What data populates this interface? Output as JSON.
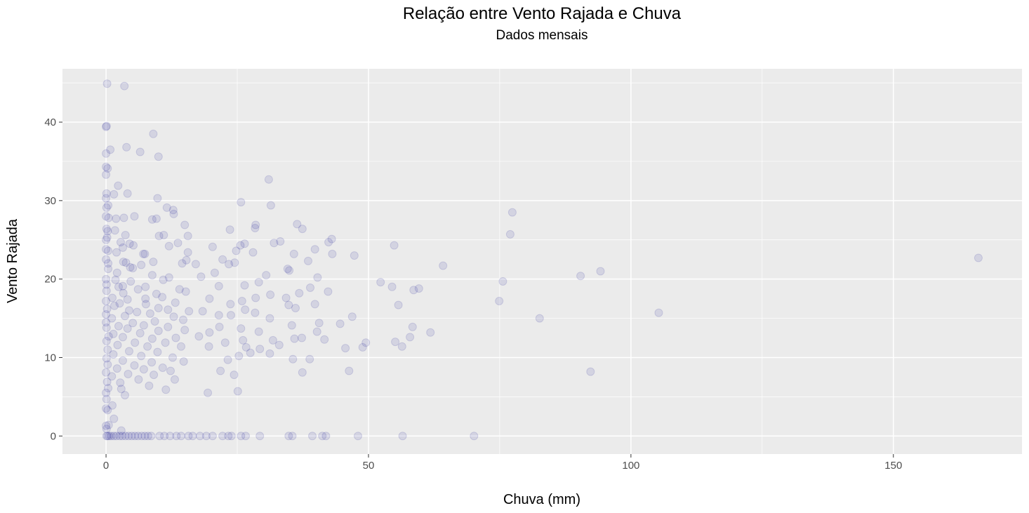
{
  "chart_data": {
    "type": "scatter",
    "title": "Relação entre Vento Rajada e Chuva",
    "subtitle": "Dados mensais",
    "xlabel": "Chuva (mm)",
    "ylabel": "Vento Rajada",
    "xlim": [
      -8.3,
      174.5
    ],
    "ylim": [
      -2.3,
      46.8
    ],
    "x_ticks": [
      0,
      50,
      100,
      150
    ],
    "x_tick_labels": [
      "0",
      "50",
      "100",
      "150"
    ],
    "y_ticks": [
      0,
      10,
      20,
      30,
      40
    ],
    "y_tick_labels": [
      "0",
      "10",
      "20",
      "30",
      "40"
    ],
    "grid": true,
    "point_color": "#00008B",
    "point_alpha": 0.1,
    "panel_background": "#EBEBEB",
    "legend": "none",
    "points": [
      [
        0.2,
        44.9
      ],
      [
        3.5,
        44.6
      ],
      [
        0,
        39.4
      ],
      [
        0.1,
        39.5
      ],
      [
        9,
        38.5
      ],
      [
        3.9,
        36.8
      ],
      [
        0.8,
        36.5
      ],
      [
        6.5,
        36.2
      ],
      [
        0,
        36
      ],
      [
        10,
        35.6
      ],
      [
        0,
        34.3
      ],
      [
        0.3,
        34.1
      ],
      [
        0,
        33.3
      ],
      [
        0.1,
        30.9
      ],
      [
        2.3,
        31.9
      ],
      [
        4.1,
        30.9
      ],
      [
        1.5,
        30.8
      ],
      [
        9.8,
        30.3
      ],
      [
        0,
        30.3
      ],
      [
        0.1,
        29.1
      ],
      [
        0.4,
        29.4
      ],
      [
        11.6,
        29.1
      ],
      [
        12.8,
        28.8
      ],
      [
        12.9,
        28.3
      ],
      [
        5.4,
        28
      ],
      [
        0,
        28
      ],
      [
        3.4,
        27.8
      ],
      [
        0.5,
        27.8
      ],
      [
        9.6,
        27.7
      ],
      [
        8.8,
        27.6
      ],
      [
        1.9,
        27.7
      ],
      [
        15,
        26.9
      ],
      [
        0.1,
        26.4
      ],
      [
        0.3,
        26.1
      ],
      [
        1.7,
        26.2
      ],
      [
        10.1,
        25.5
      ],
      [
        11,
        25.6
      ],
      [
        3.7,
        25.6
      ],
      [
        15.6,
        25.5
      ],
      [
        0.2,
        25.3
      ],
      [
        0,
        25
      ],
      [
        2.8,
        24.7
      ],
      [
        13.7,
        24.6
      ],
      [
        4.5,
        24.5
      ],
      [
        5.2,
        24.3
      ],
      [
        12,
        24.2
      ],
      [
        3.2,
        24
      ],
      [
        0,
        23.8
      ],
      [
        0.4,
        23.6
      ],
      [
        7.4,
        23.2
      ],
      [
        7.1,
        23.2
      ],
      [
        15.6,
        23.4
      ],
      [
        2,
        23.4
      ],
      [
        0,
        22.5
      ],
      [
        3.3,
        22.2
      ],
      [
        9,
        22.2
      ],
      [
        15.3,
        22.4
      ],
      [
        0.4,
        22
      ],
      [
        3.8,
        22.1
      ],
      [
        6.7,
        21.8
      ],
      [
        4.6,
        21.5
      ],
      [
        14.5,
        22
      ],
      [
        5.1,
        21.4
      ],
      [
        0.4,
        21.3
      ],
      [
        2.1,
        20.8
      ],
      [
        8.8,
        20.5
      ],
      [
        0,
        20
      ],
      [
        1.8,
        19.9
      ],
      [
        4.7,
        19.7
      ],
      [
        10.9,
        19.9
      ],
      [
        12,
        20.2
      ],
      [
        0.1,
        19.3
      ],
      [
        2.4,
        19
      ],
      [
        7.5,
        19
      ],
      [
        3.2,
        19.1
      ],
      [
        6.1,
        18.7
      ],
      [
        14,
        18.7
      ],
      [
        15.2,
        18.4
      ],
      [
        0.1,
        18.5
      ],
      [
        3.3,
        18.2
      ],
      [
        9.6,
        18.1
      ],
      [
        1.2,
        17.6
      ],
      [
        7.5,
        17.5
      ],
      [
        10.7,
        17.7
      ],
      [
        4.1,
        17.4
      ],
      [
        0,
        17.2
      ],
      [
        13.2,
        17
      ],
      [
        2.6,
        16.9
      ],
      [
        7.6,
        16.8
      ],
      [
        10,
        16.3
      ],
      [
        0.2,
        16.2
      ],
      [
        1.6,
        16.6
      ],
      [
        11.8,
        16.1
      ],
      [
        4.4,
        16
      ],
      [
        5.9,
        15.8
      ],
      [
        15.8,
        15.9
      ],
      [
        0,
        15.5
      ],
      [
        8.4,
        15.6
      ],
      [
        3.6,
        15.3
      ],
      [
        12.9,
        15.2
      ],
      [
        1.1,
        15
      ],
      [
        9.3,
        14.6
      ],
      [
        14.7,
        14.8
      ],
      [
        0,
        14.5
      ],
      [
        5.1,
        14.4
      ],
      [
        2.4,
        14
      ],
      [
        7.2,
        14.1
      ],
      [
        11.8,
        13.9
      ],
      [
        0.1,
        13.8
      ],
      [
        4.1,
        13.7
      ],
      [
        15,
        13.5
      ],
      [
        10,
        13.4
      ],
      [
        1.4,
        13
      ],
      [
        6.5,
        13.1
      ],
      [
        0.5,
        12.7
      ],
      [
        3.2,
        12.6
      ],
      [
        8.8,
        12.4
      ],
      [
        13.3,
        12.5
      ],
      [
        0.1,
        12.1
      ],
      [
        5.5,
        11.9
      ],
      [
        11.3,
        11.9
      ],
      [
        2.2,
        11.6
      ],
      [
        7.9,
        11.4
      ],
      [
        14.3,
        11.4
      ],
      [
        0.3,
        11
      ],
      [
        4.4,
        10.8
      ],
      [
        9.8,
        10.7
      ],
      [
        1.4,
        10.4
      ],
      [
        6.7,
        10.2
      ],
      [
        12.7,
        10
      ],
      [
        0.1,
        9.9
      ],
      [
        3.2,
        9.6
      ],
      [
        8.7,
        9.4
      ],
      [
        14.8,
        9.5
      ],
      [
        0.3,
        9.1
      ],
      [
        5.4,
        9
      ],
      [
        10.8,
        8.7
      ],
      [
        2.1,
        8.6
      ],
      [
        7.2,
        8.5
      ],
      [
        12.3,
        8.3
      ],
      [
        0,
        8.1
      ],
      [
        4.2,
        7.9
      ],
      [
        9.1,
        7.8
      ],
      [
        13.1,
        7.2
      ],
      [
        1.1,
        7.6
      ],
      [
        6.2,
        7.2
      ],
      [
        0.2,
        6.9
      ],
      [
        2.7,
        6.8
      ],
      [
        8.2,
        6.4
      ],
      [
        11.4,
        5.9
      ],
      [
        0.4,
        6.1
      ],
      [
        2.9,
        6
      ],
      [
        0,
        5.5
      ],
      [
        3.6,
        5.2
      ],
      [
        0.1,
        4.7
      ],
      [
        1.2,
        3.9
      ],
      [
        0,
        3.5
      ],
      [
        0.3,
        3.3
      ],
      [
        1.5,
        2.2
      ],
      [
        0,
        1.3
      ],
      [
        0.5,
        1.4
      ],
      [
        0.1,
        0.9
      ],
      [
        2.9,
        0.7
      ],
      [
        25.7,
        29.8
      ],
      [
        31,
        32.7
      ],
      [
        31.4,
        29.4
      ],
      [
        23.6,
        26.3
      ],
      [
        28.5,
        26.9
      ],
      [
        28.4,
        26.5
      ],
      [
        36.4,
        27
      ],
      [
        37.4,
        26.4
      ],
      [
        33.2,
        24.8
      ],
      [
        32,
        24.6
      ],
      [
        43,
        25.1
      ],
      [
        42.4,
        24.7
      ],
      [
        26.4,
        24.5
      ],
      [
        25.6,
        24.3
      ],
      [
        20.3,
        24.1
      ],
      [
        39.8,
        23.8
      ],
      [
        43.1,
        23.2
      ],
      [
        35.8,
        23.2
      ],
      [
        47.3,
        23
      ],
      [
        24.8,
        23.6
      ],
      [
        28,
        23.4
      ],
      [
        22.2,
        22.5
      ],
      [
        38.5,
        22.3
      ],
      [
        24.5,
        22.1
      ],
      [
        17.1,
        21.9
      ],
      [
        23.4,
        21.9
      ],
      [
        34.6,
        21.3
      ],
      [
        34.9,
        21.1
      ],
      [
        20.7,
        20.8
      ],
      [
        30.5,
        20.5
      ],
      [
        40.3,
        20.2
      ],
      [
        18.1,
        20.3
      ],
      [
        29.1,
        19.6
      ],
      [
        26.4,
        19.2
      ],
      [
        21.5,
        19.1
      ],
      [
        38.9,
        18.9
      ],
      [
        42.3,
        18.4
      ],
      [
        36.8,
        18.2
      ],
      [
        31.3,
        18
      ],
      [
        34.3,
        17.6
      ],
      [
        28.5,
        17.6
      ],
      [
        25.9,
        17.2
      ],
      [
        39.8,
        16.8
      ],
      [
        19.7,
        17.5
      ],
      [
        23.7,
        16.8
      ],
      [
        34.8,
        16.7
      ],
      [
        36.1,
        16.3
      ],
      [
        26.5,
        16.1
      ],
      [
        18.4,
        15.9
      ],
      [
        28.4,
        15.7
      ],
      [
        23.8,
        15.4
      ],
      [
        21.5,
        15.4
      ],
      [
        31.2,
        15
      ],
      [
        40.6,
        14.4
      ],
      [
        46.9,
        15.2
      ],
      [
        44.6,
        14.3
      ],
      [
        35.4,
        14.1
      ],
      [
        29.1,
        13.3
      ],
      [
        21.6,
        13.9
      ],
      [
        40.2,
        13.3
      ],
      [
        25.7,
        13.7
      ],
      [
        19.7,
        13.2
      ],
      [
        17.7,
        12.7
      ],
      [
        41.6,
        12.3
      ],
      [
        37.3,
        12.5
      ],
      [
        35.9,
        12.4
      ],
      [
        26.1,
        12.2
      ],
      [
        22.7,
        11.9
      ],
      [
        19.6,
        11.4
      ],
      [
        29.3,
        11.1
      ],
      [
        33,
        11.6
      ],
      [
        26.7,
        11.3
      ],
      [
        31.8,
        12.2
      ],
      [
        45.6,
        11.2
      ],
      [
        49.5,
        11.9
      ],
      [
        48.9,
        11.3
      ],
      [
        27.5,
        10.6
      ],
      [
        31.2,
        10.5
      ],
      [
        25.3,
        10.2
      ],
      [
        23.2,
        9.7
      ],
      [
        35.6,
        9.8
      ],
      [
        38.8,
        9.8
      ],
      [
        46.3,
        8.3
      ],
      [
        21.8,
        8.3
      ],
      [
        37.4,
        8.1
      ],
      [
        24.4,
        7.8
      ],
      [
        19.4,
        5.5
      ],
      [
        25.1,
        5.7
      ],
      [
        52.3,
        19.6
      ],
      [
        54.5,
        19
      ],
      [
        55.7,
        16.7
      ],
      [
        59.6,
        18.8
      ],
      [
        58.6,
        18.6
      ],
      [
        54.9,
        24.3
      ],
      [
        64.2,
        21.7
      ],
      [
        56.4,
        11.4
      ],
      [
        55.1,
        12
      ],
      [
        57.9,
        12.6
      ],
      [
        58.4,
        13.9
      ],
      [
        61.8,
        13.2
      ],
      [
        77,
        25.7
      ],
      [
        77.4,
        28.5
      ],
      [
        75.6,
        19.7
      ],
      [
        74.9,
        17.2
      ],
      [
        82.6,
        15
      ],
      [
        90.4,
        20.4
      ],
      [
        94.2,
        21
      ],
      [
        105.3,
        15.7
      ],
      [
        92.3,
        8.2
      ],
      [
        166.2,
        22.7
      ],
      [
        0.1,
        0
      ],
      [
        0.3,
        0
      ],
      [
        0.6,
        0
      ],
      [
        1,
        0
      ],
      [
        1.5,
        0
      ],
      [
        2,
        0
      ],
      [
        2.6,
        0
      ],
      [
        3.1,
        0
      ],
      [
        3.7,
        0
      ],
      [
        4.3,
        0
      ],
      [
        4.9,
        0
      ],
      [
        5.5,
        0
      ],
      [
        6.1,
        0
      ],
      [
        6.8,
        0
      ],
      [
        7.4,
        0
      ],
      [
        8,
        0
      ],
      [
        8.6,
        0
      ],
      [
        10.2,
        0
      ],
      [
        11.1,
        0
      ],
      [
        12.2,
        0
      ],
      [
        13.4,
        0
      ],
      [
        14.3,
        0
      ],
      [
        15.7,
        0
      ],
      [
        16.5,
        0
      ],
      [
        17.9,
        0
      ],
      [
        19.1,
        0
      ],
      [
        20.3,
        0
      ],
      [
        22.2,
        0
      ],
      [
        23.3,
        0
      ],
      [
        23.9,
        0
      ],
      [
        25.7,
        0
      ],
      [
        26.6,
        0
      ],
      [
        29.3,
        0
      ],
      [
        34.8,
        0
      ],
      [
        35.5,
        0
      ],
      [
        39.3,
        0
      ],
      [
        41.2,
        0
      ],
      [
        41.9,
        0
      ],
      [
        48,
        0
      ],
      [
        56.5,
        0
      ],
      [
        70.1,
        0
      ]
    ]
  }
}
